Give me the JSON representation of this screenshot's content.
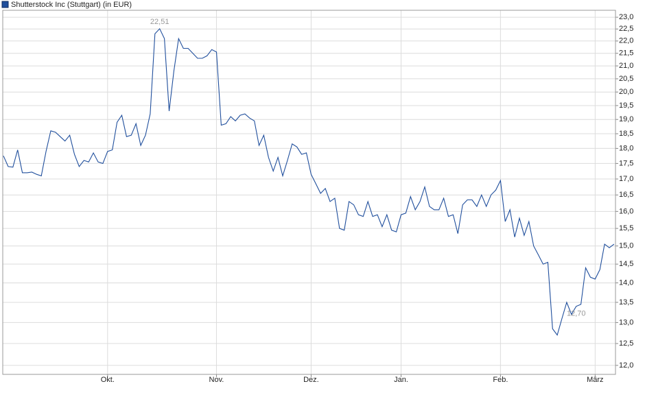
{
  "chart_data": {
    "type": "line",
    "legend": "Shutterstock Inc (Stuttgart) (in EUR)",
    "color": "#1f4e9c",
    "log_scale": true,
    "grid": true,
    "x": [
      0,
      1,
      2,
      3,
      4,
      5,
      6,
      7,
      8,
      9,
      10,
      11,
      12,
      13,
      14,
      15,
      16,
      17,
      18,
      19,
      20,
      21,
      22,
      23,
      24,
      25,
      26,
      27,
      28,
      29,
      30,
      31,
      32,
      33,
      34,
      35,
      36,
      37,
      38,
      39,
      40,
      41,
      42,
      43,
      44,
      45,
      46,
      47,
      48,
      49,
      50,
      51,
      52,
      53,
      54,
      55,
      56,
      57,
      58,
      59,
      60,
      61,
      62,
      63,
      64,
      65,
      66,
      67,
      68,
      69,
      70,
      71,
      72,
      73,
      74,
      75,
      76,
      77,
      78,
      79,
      80,
      81,
      82,
      83,
      84,
      85,
      86,
      87,
      88,
      89,
      90,
      91,
      92,
      93,
      94,
      95,
      96,
      97,
      98,
      99,
      100,
      101,
      102,
      103,
      104,
      105,
      106,
      107,
      108,
      109,
      110,
      111,
      112,
      113,
      114,
      115,
      116,
      117,
      118,
      119,
      120,
      121,
      122,
      123,
      124,
      125,
      126,
      127,
      128,
      129
    ],
    "values": [
      17.75,
      17.4,
      17.38,
      17.95,
      17.2,
      17.2,
      17.22,
      17.15,
      17.1,
      17.9,
      18.6,
      18.55,
      18.4,
      18.25,
      18.45,
      17.8,
      17.4,
      17.6,
      17.55,
      17.85,
      17.55,
      17.5,
      17.9,
      17.95,
      18.9,
      19.15,
      18.4,
      18.45,
      18.85,
      18.1,
      18.45,
      19.2,
      22.3,
      22.51,
      22.1,
      19.3,
      20.8,
      22.1,
      21.7,
      21.7,
      21.5,
      21.3,
      21.3,
      21.4,
      21.65,
      21.55,
      18.8,
      18.85,
      19.1,
      18.95,
      19.15,
      19.2,
      19.05,
      18.95,
      18.1,
      18.45,
      17.7,
      17.25,
      17.7,
      17.1,
      17.6,
      18.15,
      18.05,
      17.8,
      17.85,
      17.15,
      16.85,
      16.55,
      16.7,
      16.3,
      16.4,
      15.5,
      15.45,
      16.3,
      16.2,
      15.9,
      15.85,
      16.3,
      15.85,
      15.9,
      15.55,
      15.9,
      15.45,
      15.4,
      15.9,
      15.95,
      16.45,
      16.05,
      16.3,
      16.75,
      16.15,
      16.05,
      16.05,
      16.4,
      15.85,
      15.9,
      15.35,
      16.2,
      16.35,
      16.35,
      16.15,
      16.5,
      16.15,
      16.5,
      16.65,
      16.95,
      15.7,
      16.05,
      15.25,
      15.8,
      15.3,
      15.7,
      15.0,
      14.75,
      14.5,
      14.55,
      12.85,
      12.7,
      13.1,
      13.5,
      13.2,
      13.4,
      13.45,
      14.4,
      14.15,
      14.1,
      14.35,
      15.05,
      14.95,
      15.05
    ],
    "annotations": [
      {
        "label": "22,51",
        "x": 33
      },
      {
        "label": "12,70",
        "x": 121
      }
    ],
    "xlim": [
      -0.15,
      129.3
    ],
    "xticks": [
      {
        "value": 22,
        "label": "Okt."
      },
      {
        "value": 45,
        "label": "Nov."
      },
      {
        "value": 65,
        "label": "Dez."
      },
      {
        "value": 84,
        "label": "Jan."
      },
      {
        "value": 105,
        "label": "Feb."
      },
      {
        "value": 125,
        "label": "März"
      }
    ],
    "ylim": [
      11.8,
      23.3
    ],
    "yticks": [
      {
        "value": 12,
        "label": "12,0"
      },
      {
        "value": 12.5,
        "label": "12,5"
      },
      {
        "value": 13,
        "label": "13,0"
      },
      {
        "value": 13.5,
        "label": "13,5"
      },
      {
        "value": 14,
        "label": "14,0"
      },
      {
        "value": 14.5,
        "label": "14,5"
      },
      {
        "value": 15,
        "label": "15,0"
      },
      {
        "value": 15.5,
        "label": "15,5"
      },
      {
        "value": 16,
        "label": "16,0"
      },
      {
        "value": 16.5,
        "label": "16,5"
      },
      {
        "value": 17,
        "label": "17,0"
      },
      {
        "value": 17.5,
        "label": "17,5"
      },
      {
        "value": 18,
        "label": "18,0"
      },
      {
        "value": 18.5,
        "label": "18,5"
      },
      {
        "value": 19,
        "label": "19,0"
      },
      {
        "value": 19.5,
        "label": "19,5"
      },
      {
        "value": 20,
        "label": "20,0"
      },
      {
        "value": 20.5,
        "label": "20,5"
      },
      {
        "value": 21,
        "label": "21,0"
      },
      {
        "value": 21.5,
        "label": "21,5"
      },
      {
        "value": 22,
        "label": "22,0"
      },
      {
        "value": 22.5,
        "label": "22,5"
      },
      {
        "value": 23,
        "label": "23,0"
      }
    ]
  }
}
